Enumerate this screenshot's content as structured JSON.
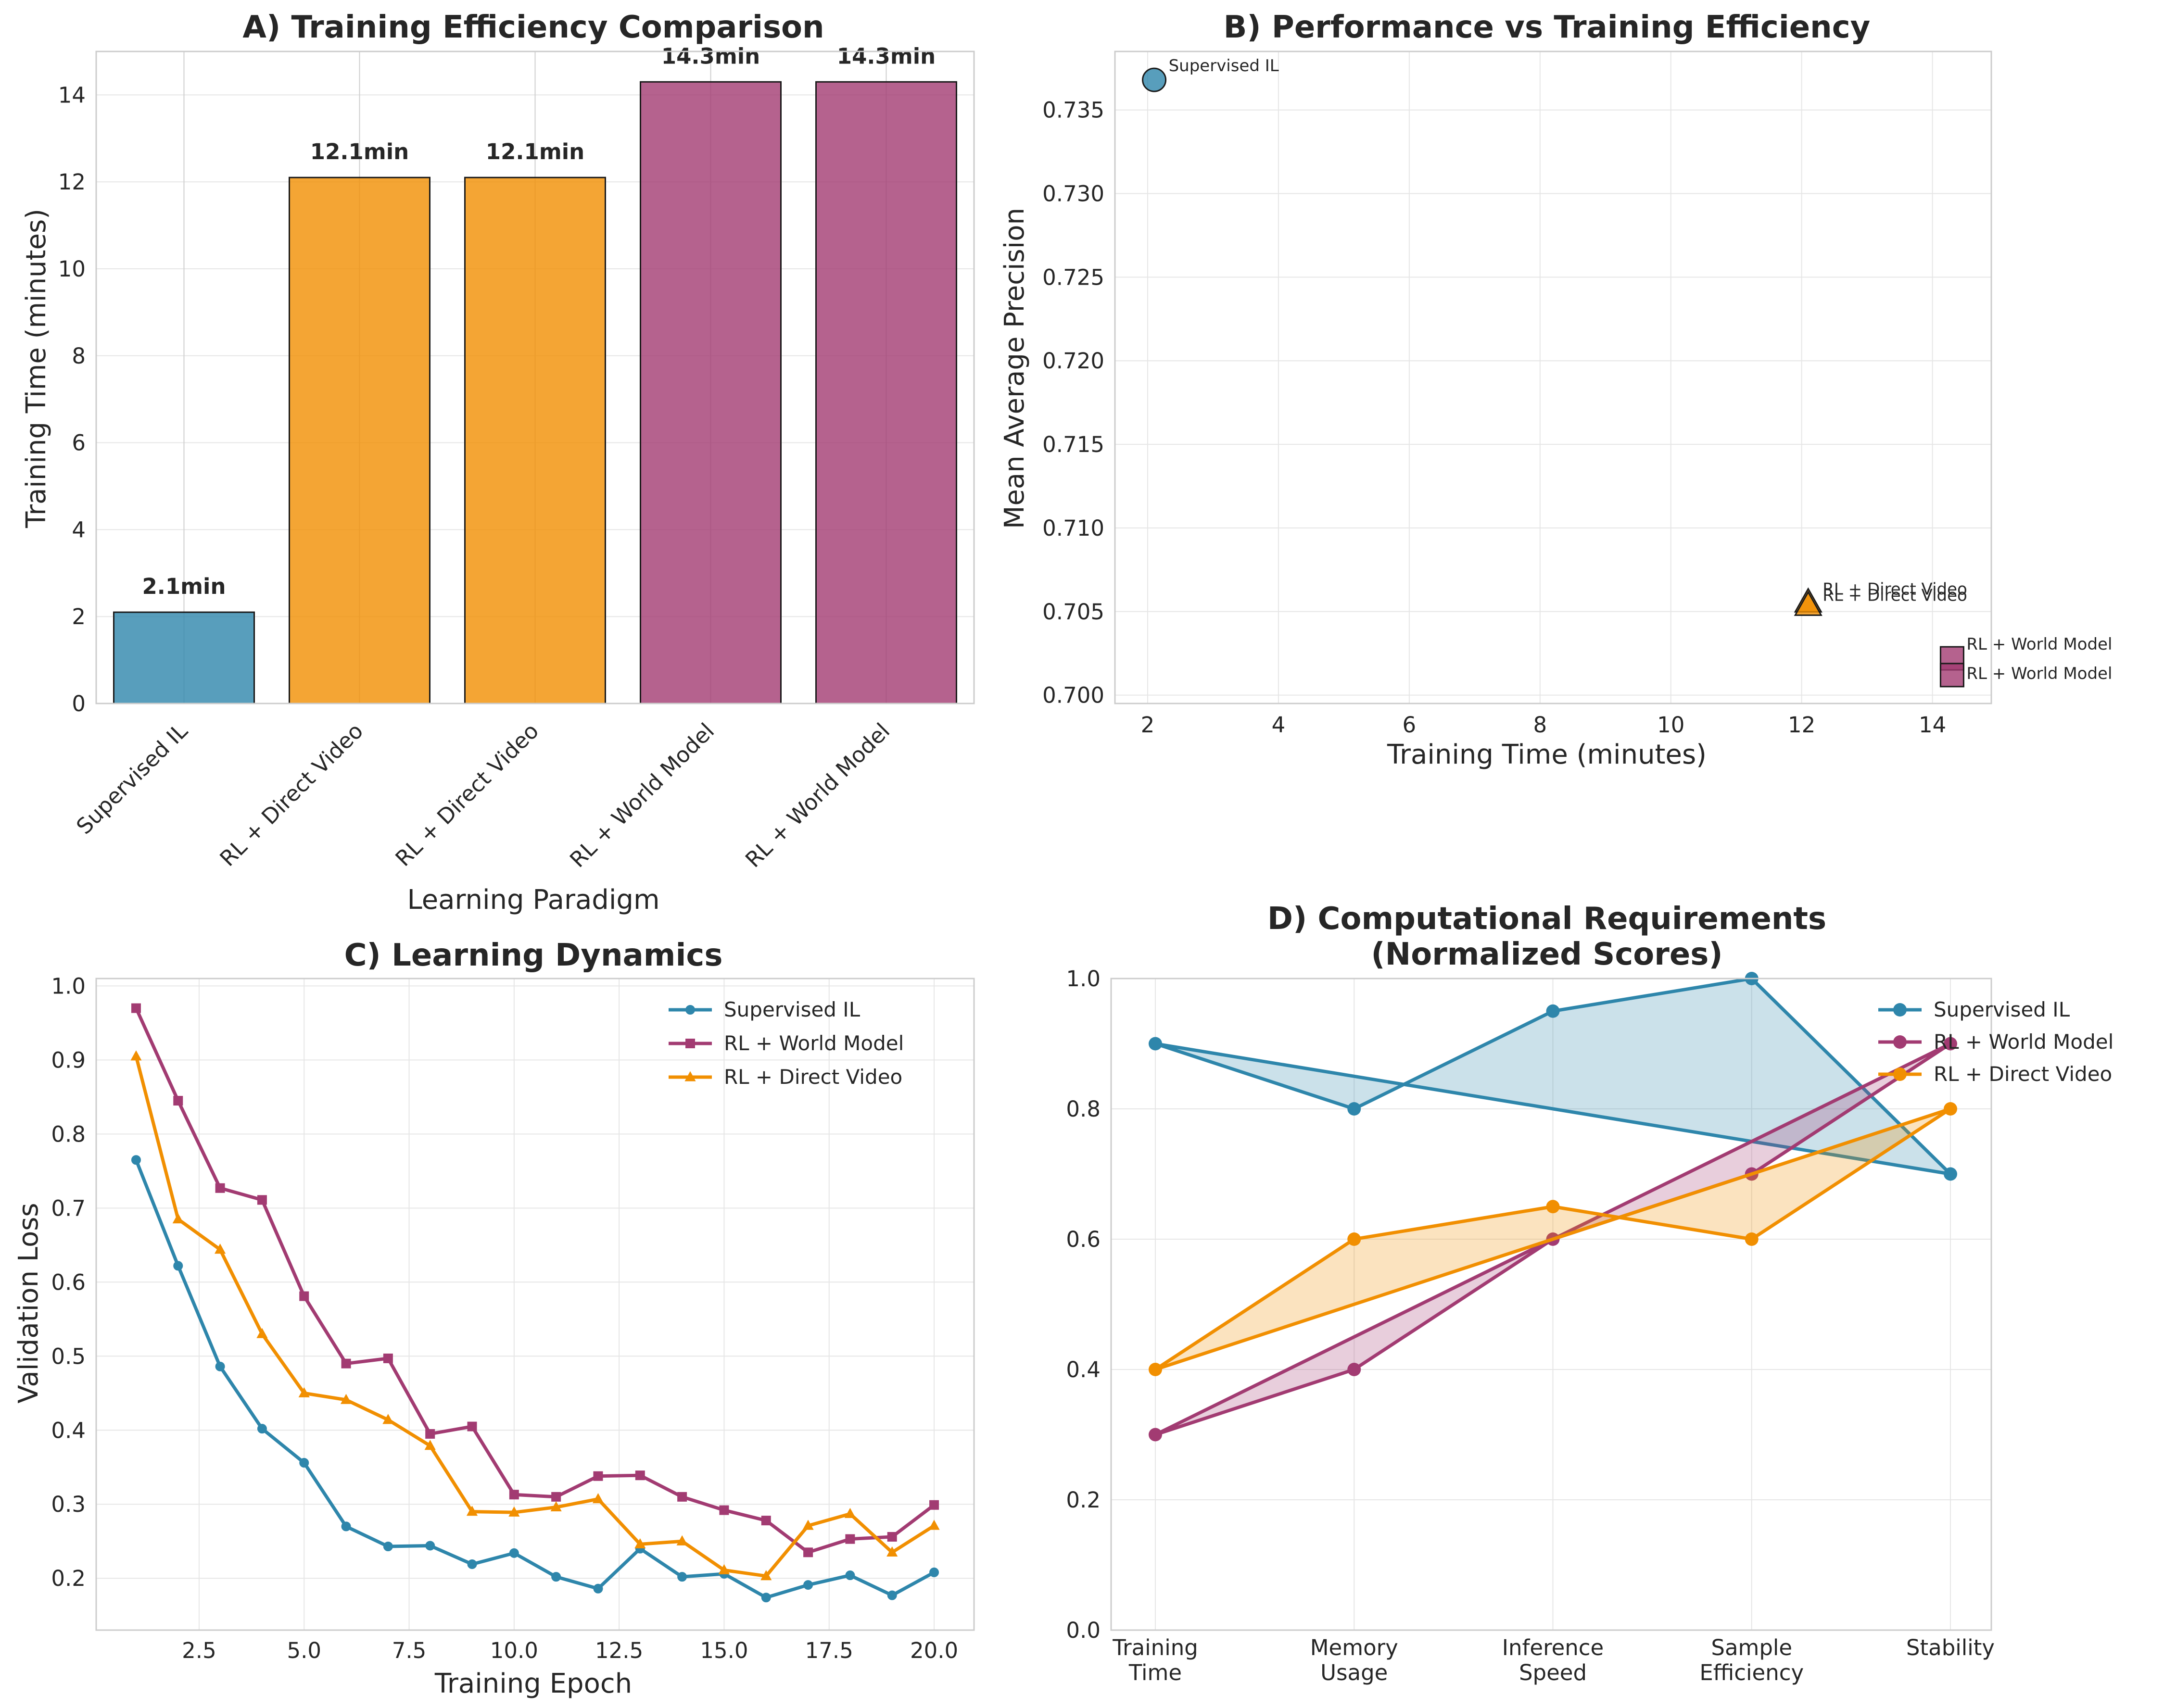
{
  "colors": {
    "supervised": "#2e86ab",
    "world_model": "#a23b72",
    "direct_video": "#f18f01"
  },
  "chart_data": [
    {
      "id": "A",
      "type": "bar",
      "title": "A) Training Efficiency Comparison",
      "xlabel": "Learning Paradigm",
      "ylabel": "Training Time (minutes)",
      "ylim": [
        0,
        15
      ],
      "yticks": [
        "0",
        "2",
        "4",
        "6",
        "8",
        "10",
        "12",
        "14"
      ],
      "categories": [
        "Supervised IL",
        "RL + Direct Video",
        "RL + Direct Video",
        "RL + World Model",
        "RL + World Model"
      ],
      "values": [
        2.1,
        12.1,
        12.1,
        14.3,
        14.3
      ],
      "value_labels": [
        "2.1min",
        "12.1min",
        "12.1min",
        "14.3min",
        "14.3min"
      ],
      "bar_colors": [
        "#2e86ab",
        "#f18f01",
        "#f18f01",
        "#a23b72",
        "#a23b72"
      ],
      "grid": true
    },
    {
      "id": "B",
      "type": "scatter",
      "title": "B) Performance vs Training Efficiency",
      "xlabel": "Training Time (minutes)",
      "ylabel": "Mean Average Precision",
      "xlim": [
        1.5,
        14.9
      ],
      "ylim": [
        0.6995,
        0.7385
      ],
      "xticks": [
        "2",
        "4",
        "6",
        "8",
        "10",
        "12",
        "14"
      ],
      "yticks": [
        "0.700",
        "0.705",
        "0.710",
        "0.715",
        "0.720",
        "0.725",
        "0.730",
        "0.735"
      ],
      "points": [
        {
          "label": "Supervised IL",
          "x": 2.1,
          "y": 0.7368,
          "marker": "circle",
          "color": "#2e86ab"
        },
        {
          "label": "RL + Direct Video",
          "x": 12.1,
          "y": 0.7055,
          "marker": "triangle",
          "color": "#f18f01"
        },
        {
          "label": "RL + Direct Video",
          "x": 12.1,
          "y": 0.7053,
          "marker": "triangle",
          "color": "#f18f01"
        },
        {
          "label": "RL + World Model",
          "x": 14.3,
          "y": 0.7022,
          "marker": "square",
          "color": "#a23b72"
        },
        {
          "label": "RL + World Model",
          "x": 14.3,
          "y": 0.7012,
          "marker": "square",
          "color": "#a23b72"
        }
      ],
      "grid": true
    },
    {
      "id": "C",
      "type": "line",
      "title": "C) Learning Dynamics",
      "xlabel": "Training Epoch",
      "ylabel": "Validation Loss",
      "xlim": [
        0.05,
        20.95
      ],
      "ylim": [
        0.13,
        1.01
      ],
      "xticks": [
        "2.5",
        "5.0",
        "7.5",
        "10.0",
        "12.5",
        "15.0",
        "17.5",
        "20.0"
      ],
      "yticks": [
        "0.2",
        "0.3",
        "0.4",
        "0.5",
        "0.6",
        "0.7",
        "0.8",
        "0.9",
        "1.0"
      ],
      "x": [
        1,
        2,
        3,
        4,
        5,
        6,
        7,
        8,
        9,
        10,
        11,
        12,
        13,
        14,
        15,
        16,
        17,
        18,
        19,
        20
      ],
      "series": [
        {
          "name": "Supervised IL",
          "marker": "circle",
          "color": "#2e86ab",
          "values": [
            0.765,
            0.622,
            0.486,
            0.402,
            0.356,
            0.27,
            0.243,
            0.244,
            0.219,
            0.234,
            0.202,
            0.186,
            0.24,
            0.202,
            0.206,
            0.174,
            0.191,
            0.204,
            0.177,
            0.208
          ]
        },
        {
          "name": "RL + World Model",
          "marker": "square",
          "color": "#a23b72",
          "values": [
            0.97,
            0.845,
            0.727,
            0.711,
            0.581,
            0.49,
            0.497,
            0.395,
            0.405,
            0.313,
            0.31,
            0.338,
            0.339,
            0.31,
            0.292,
            0.278,
            0.235,
            0.253,
            0.256,
            0.299
          ]
        },
        {
          "name": "RL + Direct Video",
          "marker": "triangle",
          "color": "#f18f01",
          "values": [
            0.905,
            0.685,
            0.644,
            0.53,
            0.45,
            0.441,
            0.414,
            0.379,
            0.29,
            0.289,
            0.296,
            0.307,
            0.246,
            0.25,
            0.211,
            0.203,
            0.271,
            0.287,
            0.235,
            0.271
          ]
        }
      ],
      "legend": "top-right",
      "grid": true
    },
    {
      "id": "D",
      "type": "area",
      "title": "D) Computational Requirements\n(Normalized Scores)",
      "title_lines": [
        "D) Computational Requirements",
        "(Normalized Scores)"
      ],
      "ylim": [
        0,
        1
      ],
      "yticks": [
        "0.0",
        "0.2",
        "0.4",
        "0.6",
        "0.8",
        "1.0"
      ],
      "categories": [
        [
          "Training",
          "Time"
        ],
        [
          "Memory",
          "Usage"
        ],
        [
          "Inference",
          "Speed"
        ],
        [
          "Sample",
          "Efficiency"
        ],
        [
          "Stability"
        ]
      ],
      "series": [
        {
          "name": "Supervised IL",
          "color": "#2e86ab",
          "values": [
            0.9,
            0.8,
            0.95,
            1.0,
            0.7
          ]
        },
        {
          "name": "RL + World Model",
          "color": "#a23b72",
          "values": [
            0.3,
            0.4,
            0.6,
            0.7,
            0.9
          ]
        },
        {
          "name": "RL + Direct Video",
          "color": "#f18f01",
          "values": [
            0.4,
            0.6,
            0.65,
            0.6,
            0.8
          ]
        }
      ],
      "legend": "top-right",
      "grid": true
    }
  ]
}
